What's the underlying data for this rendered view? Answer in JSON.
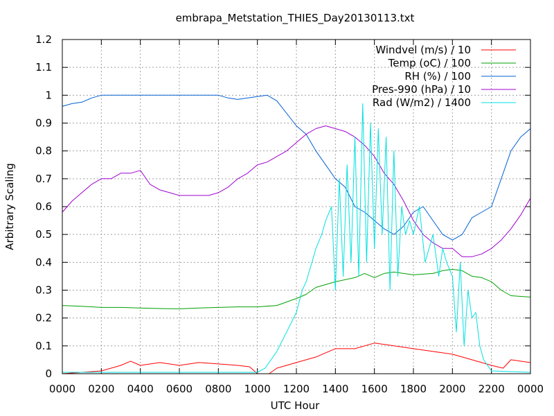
{
  "chart_data": {
    "type": "line",
    "title": "embrapa_Metstation_THIES_Day20130113.txt",
    "xlabel": "UTC Hour",
    "ylabel": "Arbitrary Scaling",
    "xlim": [
      0,
      24
    ],
    "ylim": [
      0,
      1.2
    ],
    "grid": true,
    "legend_position": "top-right",
    "x_tick_labels": [
      "0000",
      "0200",
      "0400",
      "0600",
      "0800",
      "1000",
      "1200",
      "1400",
      "1600",
      "1800",
      "2000",
      "2200",
      "0000"
    ],
    "y_tick_labels": [
      "0",
      "0.1",
      "0.2",
      "0.3",
      "0.4",
      "0.5",
      "0.6",
      "0.7",
      "0.8",
      "0.9",
      "1",
      "1.1",
      "1.2"
    ],
    "series": [
      {
        "name": "Windvel (m/s) / 10",
        "color": "#ff0000",
        "x": [
          0,
          1,
          2,
          3,
          3.5,
          4,
          5,
          6,
          7,
          8,
          9,
          9.6,
          10,
          10.6,
          11,
          12,
          13,
          14,
          15,
          16,
          17,
          18,
          19,
          20,
          21,
          22,
          22.6,
          23,
          24
        ],
        "y": [
          0,
          0.005,
          0.01,
          0.03,
          0.045,
          0.03,
          0.04,
          0.03,
          0.04,
          0.035,
          0.03,
          0.025,
          0,
          0,
          0.02,
          0.04,
          0.06,
          0.09,
          0.09,
          0.11,
          0.1,
          0.09,
          0.08,
          0.07,
          0.05,
          0.03,
          0.02,
          0.05,
          0.04
        ]
      },
      {
        "name": "Temp (oC) / 100",
        "color": "#00a000",
        "x": [
          0,
          1,
          2,
          3,
          4,
          5,
          6,
          7,
          8,
          9,
          10,
          11,
          12,
          12.5,
          13,
          14,
          15,
          15.5,
          16,
          16.5,
          17,
          18,
          19,
          19.5,
          20,
          20.5,
          21,
          21.5,
          22,
          22.5,
          23,
          24
        ],
        "y": [
          0.245,
          0.242,
          0.238,
          0.238,
          0.236,
          0.234,
          0.233,
          0.236,
          0.238,
          0.24,
          0.24,
          0.245,
          0.27,
          0.285,
          0.31,
          0.33,
          0.345,
          0.36,
          0.345,
          0.36,
          0.365,
          0.355,
          0.36,
          0.37,
          0.375,
          0.37,
          0.35,
          0.345,
          0.33,
          0.3,
          0.28,
          0.275
        ]
      },
      {
        "name": "RH (%) / 100",
        "color": "#0060d0",
        "x": [
          0,
          0.5,
          1,
          1.5,
          2,
          3,
          4,
          5,
          6,
          7,
          8,
          8.5,
          9,
          9.5,
          10,
          10.5,
          11,
          12,
          12.5,
          13,
          13.5,
          14,
          14.5,
          15,
          15.5,
          16,
          16.5,
          17,
          17.5,
          18,
          18.5,
          19,
          19.5,
          20,
          20.5,
          21,
          21.5,
          22,
          22.5,
          23,
          23.5,
          24
        ],
        "y": [
          0.96,
          0.97,
          0.975,
          0.99,
          1.0,
          1.0,
          1.0,
          1.0,
          1.0,
          1.0,
          1.0,
          0.99,
          0.985,
          0.99,
          0.995,
          1.0,
          0.98,
          0.89,
          0.86,
          0.8,
          0.75,
          0.7,
          0.67,
          0.6,
          0.58,
          0.55,
          0.52,
          0.5,
          0.53,
          0.58,
          0.6,
          0.55,
          0.5,
          0.48,
          0.5,
          0.56,
          0.58,
          0.6,
          0.7,
          0.8,
          0.85,
          0.88
        ]
      },
      {
        "name": "Pres-990 (hPa) / 10",
        "color": "#a000d0",
        "x": [
          0,
          0.5,
          1,
          1.5,
          2,
          2.5,
          3,
          3.5,
          4,
          4.5,
          5,
          5.5,
          6,
          6.5,
          7,
          7.5,
          8,
          8.5,
          9,
          9.5,
          10,
          10.5,
          11,
          11.5,
          12,
          12.5,
          13,
          13.5,
          14,
          14.5,
          15,
          15.5,
          16,
          16.5,
          17,
          17.5,
          18,
          18.5,
          19,
          19.5,
          20,
          20.5,
          21,
          21.5,
          22,
          22.5,
          23,
          23.5,
          24
        ],
        "y": [
          0.58,
          0.62,
          0.65,
          0.68,
          0.7,
          0.7,
          0.72,
          0.72,
          0.73,
          0.68,
          0.66,
          0.65,
          0.64,
          0.64,
          0.64,
          0.64,
          0.65,
          0.67,
          0.7,
          0.72,
          0.75,
          0.76,
          0.78,
          0.8,
          0.83,
          0.86,
          0.88,
          0.89,
          0.88,
          0.87,
          0.85,
          0.82,
          0.78,
          0.72,
          0.68,
          0.62,
          0.55,
          0.5,
          0.47,
          0.45,
          0.45,
          0.42,
          0.42,
          0.43,
          0.45,
          0.48,
          0.52,
          0.57,
          0.63
        ]
      },
      {
        "name": "Rad (W/m2) / 1400",
        "color": "#00e0e0",
        "x": [
          0,
          10,
          10.4,
          11,
          11.5,
          12,
          12.3,
          12.5,
          12.8,
          13,
          13.3,
          13.5,
          13.8,
          14,
          14.2,
          14.4,
          14.6,
          14.8,
          15,
          15.2,
          15.4,
          15.6,
          15.8,
          16,
          16.2,
          16.4,
          16.6,
          16.8,
          17,
          17.2,
          17.4,
          17.6,
          17.8,
          18,
          18.3,
          18.6,
          19,
          19.3,
          19.5,
          19.7,
          20,
          20.2,
          20.4,
          20.6,
          20.8,
          21,
          21.2,
          21.4,
          21.6,
          22,
          24
        ],
        "y": [
          0.005,
          0.005,
          0.02,
          0.08,
          0.15,
          0.22,
          0.3,
          0.33,
          0.4,
          0.45,
          0.5,
          0.55,
          0.6,
          0.3,
          0.7,
          0.35,
          0.75,
          0.4,
          0.85,
          0.35,
          0.97,
          0.4,
          0.9,
          0.45,
          0.88,
          0.5,
          0.85,
          0.3,
          0.8,
          0.35,
          0.6,
          0.5,
          0.55,
          0.5,
          0.6,
          0.4,
          0.5,
          0.35,
          0.45,
          0.4,
          0.35,
          0.15,
          0.4,
          0.1,
          0.3,
          0.2,
          0.22,
          0.1,
          0.05,
          0.01,
          0.005
        ]
      }
    ]
  }
}
